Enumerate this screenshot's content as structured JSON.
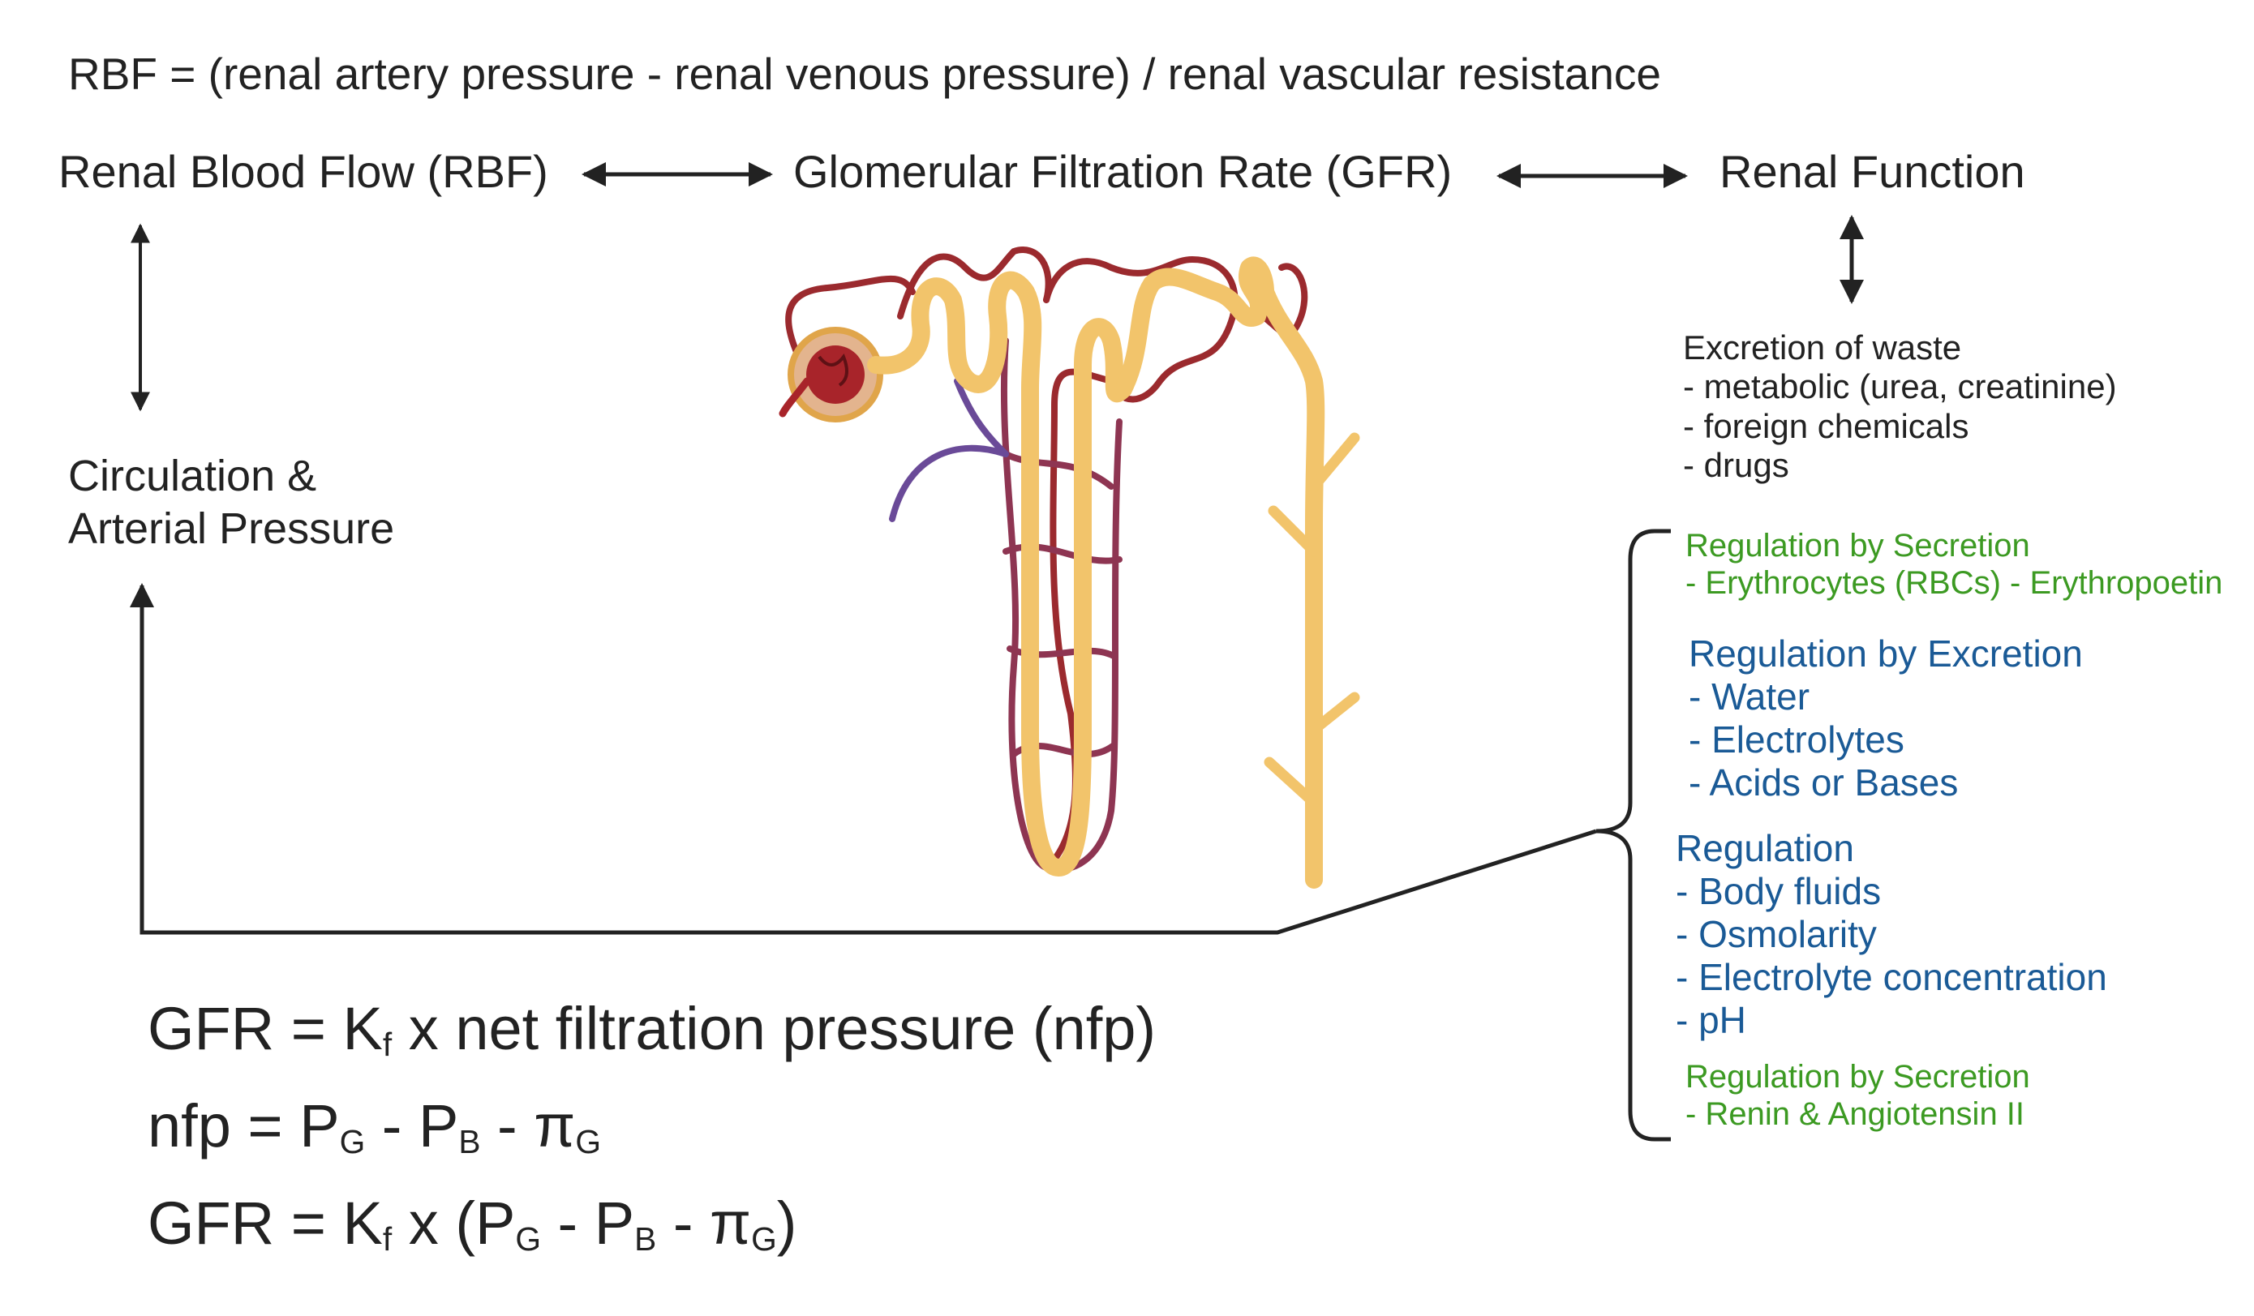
{
  "top_equation": "RBF = (renal artery pressure - renal venous pressure) / renal vascular resistance",
  "nodes": {
    "rbf": "Renal Blood Flow (RBF)",
    "gfr": "Glomerular Filtration Rate (GFR)",
    "renal_function": "Renal Function",
    "circulation_line1": "Circulation &",
    "circulation_line2": "Arterial Pressure"
  },
  "excretion": {
    "title": "Excretion of waste",
    "items": [
      "- metabolic (urea, creatinine)",
      "- foreign chemicals",
      "- drugs"
    ]
  },
  "regulation_secretion_1": {
    "title": "Regulation by Secretion",
    "items": [
      "- Erythrocytes (RBCs) - Erythropoetin"
    ]
  },
  "regulation_excretion": {
    "title": "Regulation by Excretion",
    "items": [
      "- Water",
      "- Electrolytes",
      "- Acids or Bases"
    ]
  },
  "regulation": {
    "title": "Regulation",
    "items": [
      "- Body fluids",
      "- Osmolarity",
      "- Electrolyte concentration",
      "- pH"
    ]
  },
  "regulation_secretion_2": {
    "title": "Regulation by Secretion",
    "items": [
      "- Renin & Angiotensin II"
    ]
  },
  "equations": {
    "eq1": {
      "a": "GFR = K",
      "sub_f": "f",
      "b": " x net filtration pressure (nfp)"
    },
    "eq2": {
      "a": "nfp = P",
      "sub_g": "G",
      "b": " - P",
      "sub_b": "B",
      "c": " - π",
      "sub_g2": "G"
    },
    "eq3": {
      "a": "GFR = K",
      "sub_f": "f",
      "b": " x (P",
      "sub_g": "G",
      "c": " - P",
      "sub_b": "B",
      "d": " - π",
      "sub_g2": "G",
      "e": ")"
    }
  },
  "colors": {
    "green_text": "#3c9a22",
    "blue_text": "#1a5a96",
    "tubule": "#f2c46b",
    "artery": "#9b2a2e",
    "vein": "#6a4a98"
  }
}
